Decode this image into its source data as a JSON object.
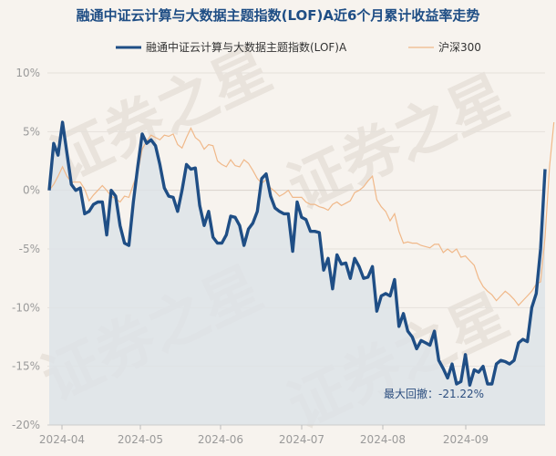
{
  "chart_data": {
    "type": "line",
    "title": "融通中证云计算与大数据主题指数(LOF)A近6个月累计收益率走势",
    "xlabel": "",
    "ylabel": "",
    "ylim": [
      -20,
      10
    ],
    "yticks": [
      10,
      5,
      0,
      -5,
      -10,
      -15,
      -20
    ],
    "ytick_labels": [
      "10%",
      "5%",
      "0%",
      "-5%",
      "-10%",
      "-15%",
      "-20%"
    ],
    "xtick_labels": [
      "2024-04",
      "2024-05",
      "2024-06",
      "2024-07",
      "2024-08",
      "2024-09"
    ],
    "grid": "horizontal",
    "legend_placement": "top",
    "annotation": "最大回撤：-21.22%",
    "watermark": "证券之星",
    "series": [
      {
        "name": "融通中证云计算与大数据主题指数(LOF)A",
        "color": "#1f4e85",
        "values": [
          0.0,
          4.0,
          3.0,
          5.8,
          3.2,
          0.5,
          0.0,
          0.2,
          -2.0,
          -1.8,
          -1.2,
          -1.0,
          -1.0,
          -3.8,
          0.0,
          -0.5,
          -3.0,
          -4.5,
          -4.7,
          -1.0,
          2.0,
          4.8,
          4.0,
          4.3,
          3.8,
          2.2,
          0.2,
          -0.5,
          -0.6,
          -1.8,
          0.0,
          2.2,
          1.8,
          1.9,
          -1.3,
          -3.0,
          -1.8,
          -4.0,
          -4.5,
          -4.5,
          -3.8,
          -2.2,
          -2.3,
          -3.0,
          -4.7,
          -3.3,
          -2.8,
          -1.8,
          1.0,
          1.4,
          -0.5,
          -1.5,
          -1.8,
          -2.0,
          -2.0,
          -5.2,
          -1.0,
          -2.3,
          -2.5,
          -3.5,
          -3.5,
          -3.6,
          -6.8,
          -5.8,
          -8.4,
          -5.5,
          -6.3,
          -6.2,
          -7.5,
          -5.8,
          -6.5,
          -7.5,
          -7.4,
          -6.5,
          -10.3,
          -9.0,
          -8.8,
          -9.0,
          -7.6,
          -11.6,
          -10.5,
          -12.0,
          -12.5,
          -13.5,
          -12.8,
          -13.0,
          -13.2,
          -12.0,
          -14.5,
          -15.2,
          -16.0,
          -14.8,
          -16.5,
          -16.3,
          -14.0,
          -16.6,
          -15.3,
          -15.5,
          -15.0,
          -16.5,
          -16.5,
          -14.8,
          -14.5,
          -14.6,
          -14.8,
          -14.5,
          -13.0,
          -12.7,
          -12.9,
          -10.0,
          -8.8,
          -5.0,
          1.8
        ]
      },
      {
        "name": "沪深300",
        "color": "#f0b889",
        "values": [
          0.0,
          0.5,
          1.2,
          2.0,
          1.2,
          0.7,
          0.7,
          0.7,
          0.1,
          -0.9,
          -0.4,
          0.0,
          0.4,
          0.0,
          -0.5,
          -0.7,
          -1.0,
          -0.5,
          -0.6,
          0.5,
          1.5,
          3.5,
          4.2,
          4.7,
          4.5,
          4.3,
          4.7,
          4.6,
          4.8,
          3.9,
          3.6,
          4.5,
          5.3,
          4.5,
          4.2,
          3.5,
          3.9,
          3.8,
          2.5,
          2.2,
          2.0,
          2.6,
          2.1,
          2.0,
          2.6,
          2.3,
          1.7,
          1.0,
          0.6,
          0.9,
          0.2,
          -0.1,
          -0.5,
          -0.3,
          0.0,
          -0.6,
          -0.6,
          -0.6,
          -1.0,
          -1.2,
          -1.2,
          -1.4,
          -1.5,
          -1.7,
          -1.2,
          -1.0,
          -1.3,
          -1.1,
          -0.9,
          -0.2,
          0.0,
          0.3,
          0.8,
          1.2,
          -0.8,
          -1.4,
          -1.8,
          -2.6,
          -2.0,
          -3.5,
          -4.5,
          -4.4,
          -4.5,
          -4.5,
          -4.7,
          -4.8,
          -4.9,
          -4.6,
          -4.6,
          -5.3,
          -5.0,
          -5.3,
          -5.0,
          -5.7,
          -5.6,
          -6.0,
          -6.4,
          -7.5,
          -8.2,
          -8.6,
          -8.9,
          -9.4,
          -9.0,
          -8.6,
          -8.9,
          -9.3,
          -9.8,
          -9.4,
          -9.0,
          -8.6,
          -8.0,
          -7.8,
          -4.0,
          2.0,
          5.8
        ]
      }
    ]
  }
}
